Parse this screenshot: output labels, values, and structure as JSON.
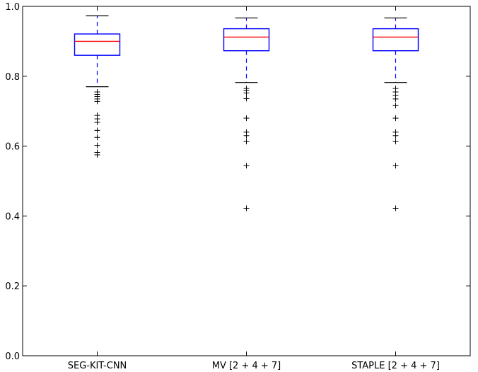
{
  "chart_data": {
    "type": "box",
    "categories": [
      "SEG-KIT-CNN",
      "MV [2 + 4 + 7]",
      "STAPLE [2 + 4 + 7]"
    ],
    "ylim": [
      0.0,
      1.0
    ],
    "yticks": [
      "0.0",
      "0.2",
      "0.4",
      "0.6",
      "0.8",
      "1.0"
    ],
    "grid": false,
    "colors": {
      "box": "#0000ff",
      "median": "#ff0000",
      "whisker": "#0000ff",
      "cap": "#000000",
      "flier": "#000000",
      "axis": "#000000"
    },
    "boxes": [
      {
        "name": "SEG-KIT-CNN",
        "q1": 0.86,
        "median": 0.9,
        "q3": 0.921,
        "whislo": 0.77,
        "whishi": 0.973,
        "fliers": [
          0.755,
          0.748,
          0.742,
          0.735,
          0.728,
          0.688,
          0.678,
          0.668,
          0.645,
          0.625,
          0.602,
          0.582,
          0.575
        ]
      },
      {
        "name": "MV [2 + 4 + 7]",
        "q1": 0.873,
        "median": 0.912,
        "q3": 0.936,
        "whislo": 0.782,
        "whishi": 0.967,
        "fliers": [
          0.765,
          0.76,
          0.752,
          0.736,
          0.68,
          0.64,
          0.63,
          0.613,
          0.544,
          0.422
        ]
      },
      {
        "name": "STAPLE [2 + 4 + 7]",
        "q1": 0.873,
        "median": 0.912,
        "q3": 0.936,
        "whislo": 0.782,
        "whishi": 0.967,
        "fliers": [
          0.765,
          0.755,
          0.745,
          0.735,
          0.716,
          0.68,
          0.64,
          0.63,
          0.613,
          0.544,
          0.422
        ]
      }
    ]
  }
}
